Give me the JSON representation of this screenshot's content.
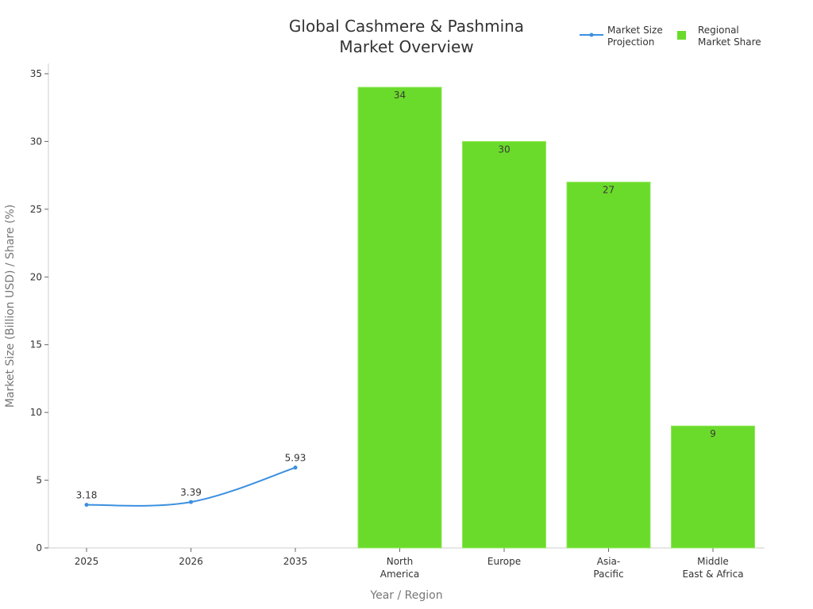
{
  "chart_data": {
    "type": "bar",
    "title": [
      "Global Cashmere & Pashmina",
      "Market Overview"
    ],
    "xlabel": "Year / Region",
    "ylabel": "Market Size (Billion USD) / Share (%)",
    "ylim": [
      0,
      35
    ],
    "yticks": [
      0,
      5,
      10,
      15,
      20,
      25,
      30,
      35
    ],
    "grid": false,
    "legend_position": "top-right",
    "categories": [
      [
        "2025"
      ],
      [
        "2026"
      ],
      [
        "2035"
      ],
      [
        "North",
        "America"
      ],
      [
        "Europe"
      ],
      [
        "Asia-",
        "Pacific"
      ],
      [
        "Middle",
        "East & Africa"
      ]
    ],
    "series": [
      {
        "name": "Market Size Projection",
        "legend_label": [
          "Market Size",
          "Projection"
        ],
        "type": "line",
        "color": "#3b8fe0",
        "points": [
          {
            "category_index": 0,
            "x": "2025",
            "value": 3.18,
            "label": "3.18"
          },
          {
            "category_index": 1,
            "x": "2026",
            "value": 3.39,
            "label": "3.39"
          },
          {
            "category_index": 2,
            "x": "2035",
            "value": 5.93,
            "label": "5.93"
          }
        ]
      },
      {
        "name": "Regional Market Share",
        "legend_label": [
          "Regional",
          "Market Share"
        ],
        "type": "bar",
        "color": "#6adb2a",
        "points": [
          {
            "category_index": 3,
            "x": "North America",
            "value": 34,
            "label": "34"
          },
          {
            "category_index": 4,
            "x": "Europe",
            "value": 30,
            "label": "30"
          },
          {
            "category_index": 5,
            "x": "Asia-Pacific",
            "value": 27,
            "label": "27"
          },
          {
            "category_index": 6,
            "x": "Middle East & Africa",
            "value": 9,
            "label": "9"
          }
        ]
      }
    ]
  },
  "colors": {
    "axis": "#cccccc",
    "text": "#333333",
    "axis_title": "#777777"
  }
}
